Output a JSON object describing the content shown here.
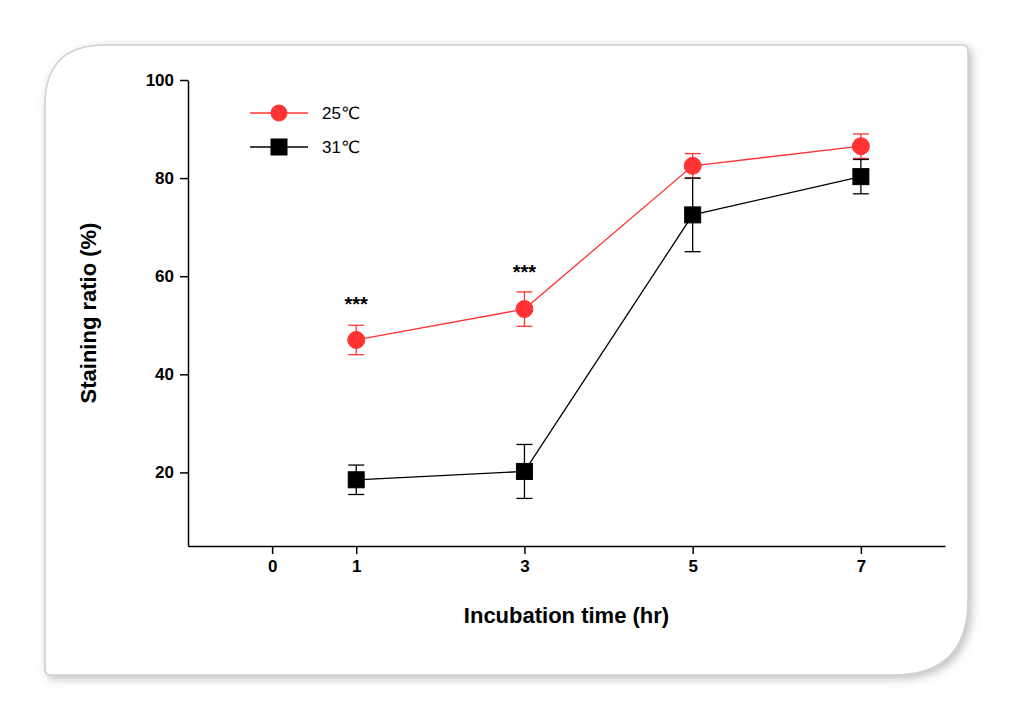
{
  "chart_data": {
    "type": "line",
    "x_label": "Incubation time (hr)",
    "y_label": "Staining ratio (%)",
    "x": [
      1,
      3,
      5,
      7
    ],
    "series": [
      {
        "name": "25℃",
        "color": "#ff3333",
        "marker": "circle",
        "line_style": "solid",
        "values": [
          47,
          53.3,
          82.5,
          86.5
        ],
        "errors": [
          3,
          3.5,
          2.5,
          2.5
        ]
      },
      {
        "name": "31℃",
        "color": "#000000",
        "marker": "square",
        "line_style": "solid",
        "values": [
          18.5,
          20.2,
          72.5,
          80.3
        ],
        "errors": [
          3,
          5.5,
          7.5,
          3.5
        ]
      }
    ],
    "xlim": [
      -1,
      8
    ],
    "xticks": [
      0,
      1,
      3,
      5,
      7
    ],
    "ylim": [
      5,
      100
    ],
    "yticks": [
      20,
      40,
      60,
      80,
      100
    ],
    "legend": "upper left",
    "annotations": [
      {
        "text": "***",
        "x": 1,
        "y": 53
      },
      {
        "text": "***",
        "x": 3,
        "y": 59.5
      }
    ]
  }
}
